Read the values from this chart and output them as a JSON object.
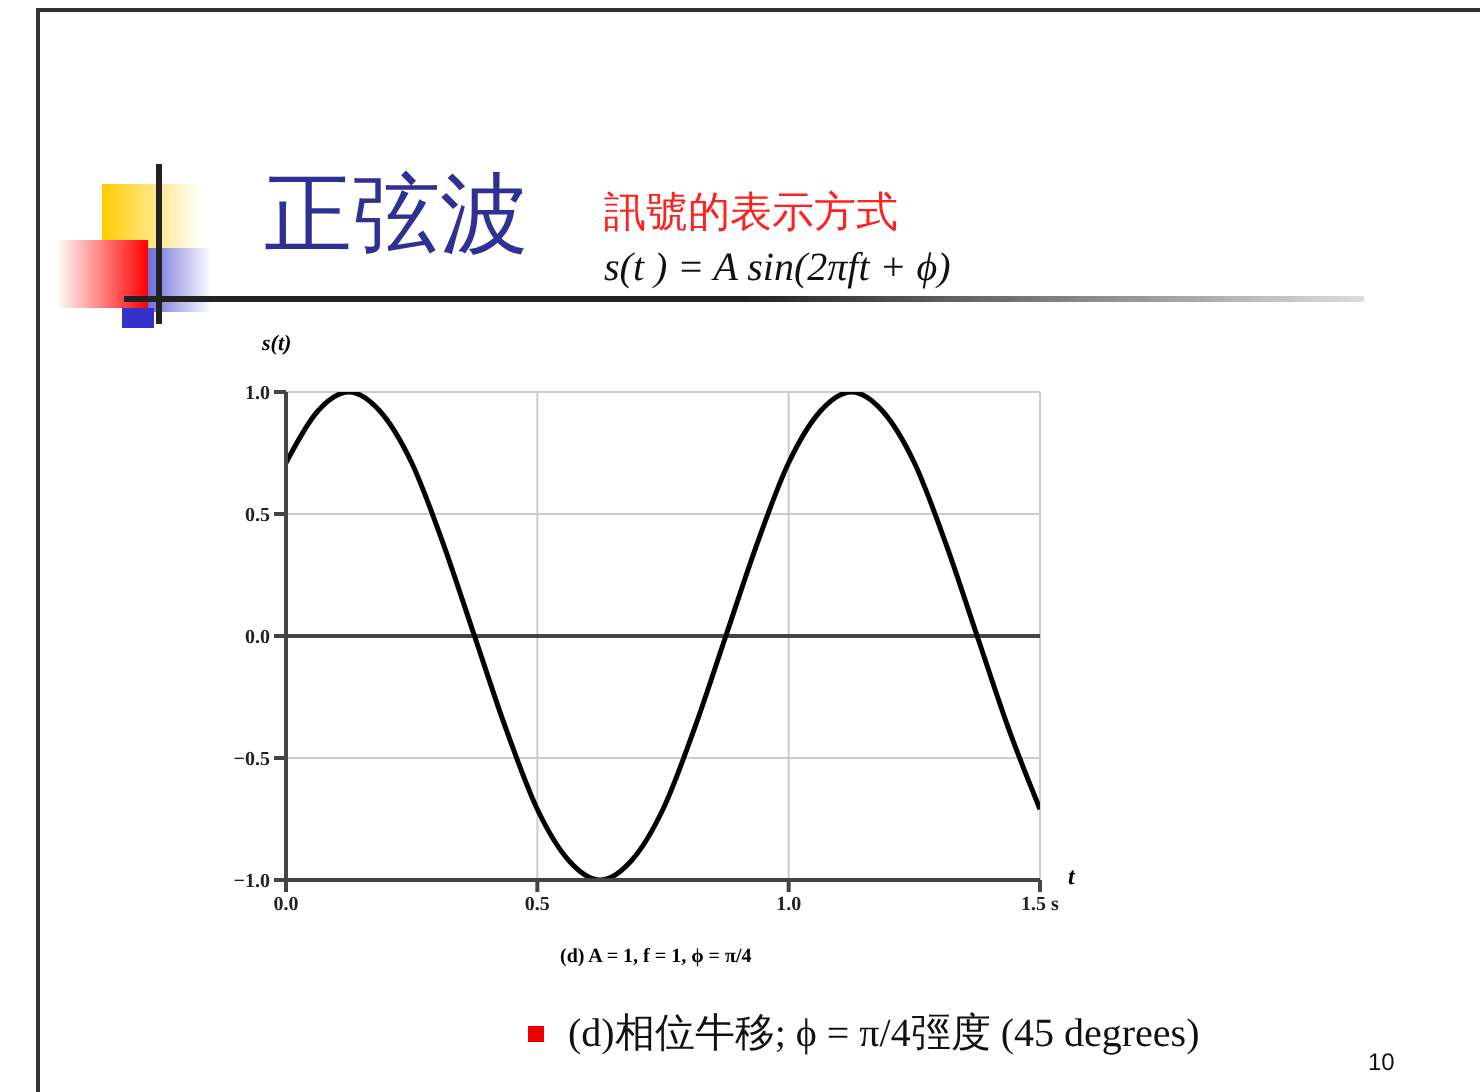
{
  "chart_data": {
    "type": "line",
    "title": "正弦波",
    "subtitle": "訊號的表示方式",
    "xlabel": "t",
    "ylabel": "s(t)",
    "annotations": [
      "s(t ) = A sin(2πft + ϕ)",
      "(d) A = 1, f = 1, ϕ = π/4",
      "(d)相位牛移; ϕ = π/4弳度  (45 degrees)",
      "10"
    ],
    "x": [
      0,
      0.0625,
      0.125,
      0.1875,
      0.25,
      0.3125,
      0.375,
      0.4375,
      0.5,
      0.5625,
      0.625,
      0.6875,
      0.75,
      0.8125,
      0.875,
      0.9375,
      1,
      1.0625,
      1.125,
      1.1875,
      1.25,
      1.3125,
      1.375,
      1.4375,
      1.5
    ],
    "series": [
      {
        "color": "#000000",
        "values": [
          0.71,
          0.92,
          1,
          0.92,
          0.71,
          0.38,
          0,
          -0.38,
          -0.71,
          -0.92,
          -1,
          -0.92,
          -0.71,
          -0.38,
          0,
          0.38,
          0.71,
          0.92,
          1,
          0.92,
          0.71,
          0.38,
          0,
          -0.38,
          -0.71
        ]
      }
    ],
    "xlim": [
      0,
      1.5
    ],
    "xticks": [
      {
        "value": 0,
        "label": "0.0"
      },
      0.5,
      {
        "value": 1,
        "label": "1.0"
      },
      {
        "value": 1.5,
        "label": "1.5 s"
      }
    ],
    "ylim": [
      -1,
      1
    ],
    "yticks": [
      {
        "value": -1,
        "label": "−1.0"
      },
      {
        "value": -0.5,
        "label": "−0.5"
      },
      {
        "value": 0,
        "label": "0.0"
      },
      0.5,
      {
        "value": 1,
        "label": "1.0"
      }
    ],
    "ref_lines": [
      {
        "axis": "y",
        "value": 0,
        "color": "#444444"
      }
    ],
    "grid": true,
    "marker": "none",
    "line_style": "solid"
  }
}
